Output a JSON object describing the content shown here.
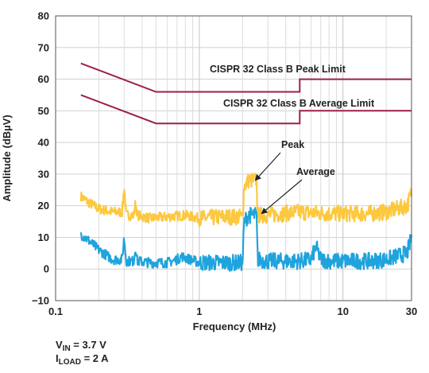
{
  "chart_data": {
    "type": "line",
    "xlabel": "Frequency (MHz)",
    "ylabel": "Amplitude (dBµV)",
    "x_scale": "log",
    "xlim": [
      0.1,
      30
    ],
    "ylim": [
      -10,
      80
    ],
    "x_ticks": [
      0.1,
      1,
      10,
      30
    ],
    "x_tick_labels": [
      "0.1",
      "1",
      "10",
      "30"
    ],
    "y_ticks": [
      -10,
      0,
      10,
      20,
      30,
      40,
      50,
      60,
      70,
      80
    ],
    "y_tick_labels": [
      "−10",
      "0",
      "10",
      "20",
      "30",
      "40",
      "50",
      "60",
      "70",
      "80"
    ],
    "grid": true,
    "limit_lines": [
      {
        "name": "CISPR 32 Class B Peak Limit",
        "color": "#9c1f4a",
        "x": [
          0.15,
          0.5,
          0.5,
          5,
          5,
          30
        ],
        "y": [
          65,
          56,
          56,
          56,
          60,
          60
        ]
      },
      {
        "name": "CISPR 32 Class B Average Limit",
        "color": "#9c1f4a",
        "x": [
          0.15,
          0.5,
          0.5,
          5,
          5,
          30
        ],
        "y": [
          55,
          46,
          46,
          46,
          50,
          50
        ]
      }
    ],
    "series": [
      {
        "name": "Peak",
        "color": "#fcc83f",
        "x": [
          0.15,
          0.17,
          0.2,
          0.25,
          0.29,
          0.3,
          0.31,
          0.35,
          0.36,
          0.37,
          0.45,
          0.6,
          0.8,
          1.0,
          1.5,
          2.0,
          2.05,
          2.2,
          2.5,
          2.55,
          3,
          5,
          8,
          10,
          15,
          20,
          28,
          30
        ],
        "y": [
          23,
          21,
          19,
          18,
          18,
          26,
          17,
          17,
          21,
          17,
          16,
          16.5,
          17,
          16,
          16.5,
          16.5,
          26,
          28,
          28,
          17,
          17,
          18,
          17.5,
          17.5,
          17.5,
          18,
          20,
          24
        ]
      },
      {
        "name": "Average",
        "color": "#1fa3dd",
        "x": [
          0.15,
          0.17,
          0.2,
          0.25,
          0.29,
          0.3,
          0.31,
          0.35,
          0.36,
          0.37,
          0.45,
          0.6,
          0.7,
          0.75,
          1.0,
          1.5,
          2.0,
          2.05,
          2.2,
          2.5,
          2.55,
          3,
          5,
          6,
          6.5,
          7,
          8,
          10,
          15,
          20,
          28,
          30
        ],
        "y": [
          11,
          9,
          6,
          3,
          3,
          10,
          2.5,
          2.5,
          7,
          2.5,
          2,
          2,
          3,
          4,
          2,
          2,
          2,
          15,
          17,
          17,
          3,
          2.5,
          2.5,
          3,
          7,
          3,
          2.5,
          2.5,
          2.5,
          3,
          5,
          10
        ]
      }
    ],
    "annotations": [
      {
        "text": "CISPR 32 Class B Peak Limit"
      },
      {
        "text": "CISPR 32 Class B Average Limit"
      },
      {
        "text": "Peak"
      },
      {
        "text": "Average"
      }
    ]
  },
  "conditions": [
    {
      "main": "V",
      "sub": "IN",
      "rest": " = 3.7 V"
    },
    {
      "main": "I",
      "sub": "LOAD",
      "rest": " = 2 A"
    }
  ]
}
